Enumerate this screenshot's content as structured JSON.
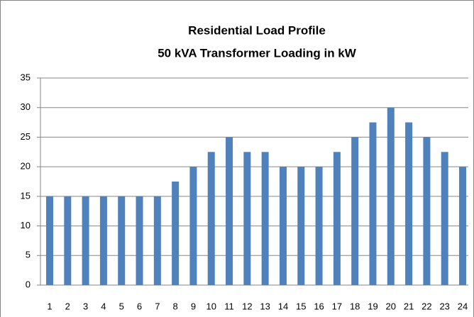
{
  "chart_data": {
    "type": "bar",
    "title": "Residential Load Profile",
    "subtitle": "50 kVA Transformer Loading in kW",
    "categories": [
      "1",
      "2",
      "3",
      "4",
      "5",
      "6",
      "7",
      "8",
      "9",
      "10",
      "11",
      "12",
      "13",
      "14",
      "15",
      "16",
      "17",
      "18",
      "19",
      "20",
      "21",
      "22",
      "23",
      "24"
    ],
    "values": [
      15,
      15,
      15,
      15,
      15,
      15,
      15,
      17.5,
      20,
      22.5,
      25,
      22.5,
      22.5,
      20,
      20,
      20,
      22.5,
      25,
      27.5,
      30,
      27.5,
      25,
      22.5,
      20
    ],
    "color": "#4f81bd",
    "ylim": [
      0,
      35
    ],
    "yticks": [
      0,
      5,
      10,
      15,
      20,
      25,
      30,
      35
    ],
    "grid": true
  }
}
